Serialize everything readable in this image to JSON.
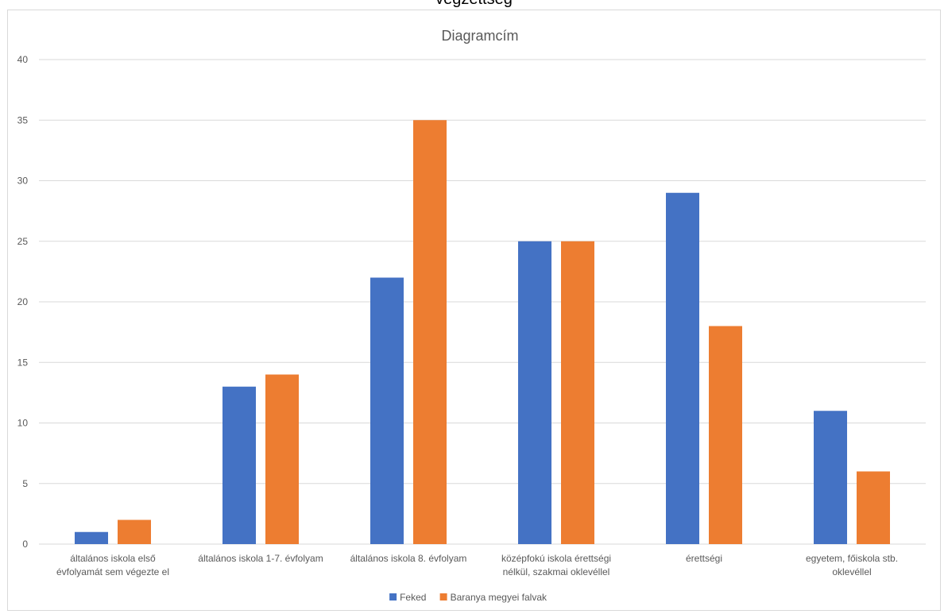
{
  "header_fragment": "végzettség",
  "chart_data": {
    "type": "bar",
    "title": "Diagramcím",
    "xlabel": "",
    "ylabel": "",
    "ylim": [
      0,
      40
    ],
    "yticks": [
      0,
      5,
      10,
      15,
      20,
      25,
      30,
      35,
      40
    ],
    "grid": true,
    "legend_position": "bottom",
    "categories": [
      [
        "általános iskola első",
        "évfolyamát sem végezte el"
      ],
      [
        "általános iskola 1-7. évfolyam"
      ],
      [
        "általános iskola 8. évfolyam"
      ],
      [
        "középfokú iskola érettségi",
        "nélkül, szakmai oklevéllel"
      ],
      [
        "érettségi"
      ],
      [
        "egyetem, főiskola stb.",
        "oklevéllel"
      ]
    ],
    "series": [
      {
        "name": "Feked",
        "color": "#4472C4",
        "values": [
          1,
          13,
          22,
          25,
          29,
          11
        ]
      },
      {
        "name": "Baranya megyei falvak",
        "color": "#ED7D31",
        "values": [
          2,
          14,
          35,
          25,
          18,
          6
        ]
      }
    ]
  }
}
